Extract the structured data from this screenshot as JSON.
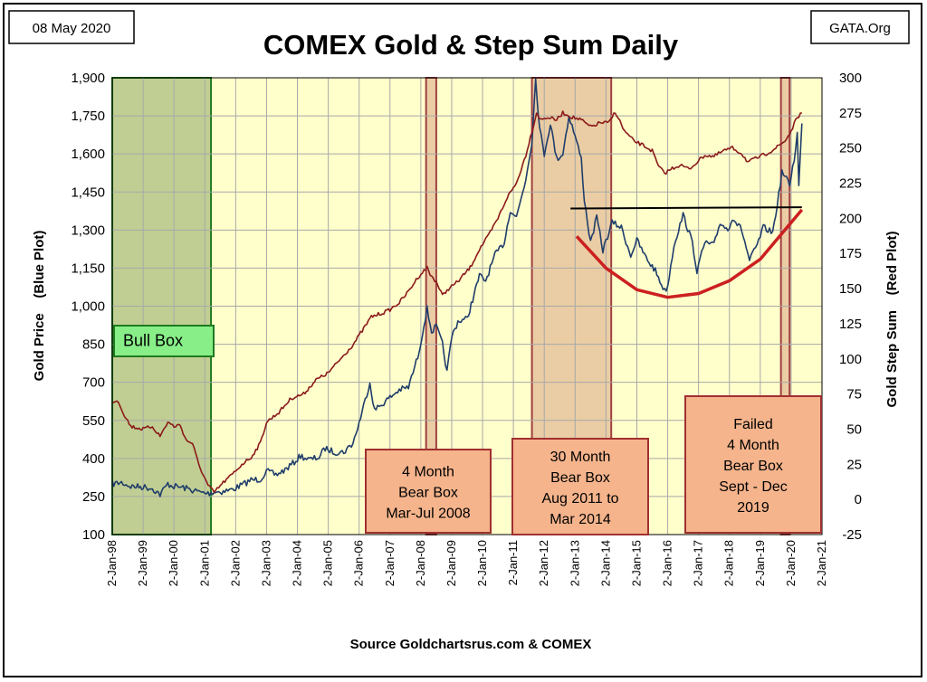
{
  "header": {
    "date_label": "08 May 2020",
    "site_label": "GATA.Org"
  },
  "chart_data": {
    "type": "line",
    "title": "COMEX Gold & Step Sum Daily",
    "source": "Source Goldchartsrus.com & COMEX",
    "left_axis": {
      "label": "Gold Price    (Blue Plot)",
      "min": 100,
      "max": 1900,
      "ticks": [
        100,
        250,
        400,
        550,
        700,
        850,
        1000,
        1150,
        1300,
        1450,
        1600,
        1750,
        1900
      ],
      "tick_labels": [
        "100",
        "250",
        "400",
        "550",
        "700",
        "850",
        "1,000",
        "1,150",
        "1,300",
        "1,450",
        "1,600",
        "1,750",
        "1,900"
      ]
    },
    "right_axis": {
      "label": "Gold Step Sum    (Red Plot)",
      "min": -25,
      "max": 300,
      "ticks": [
        -25,
        0,
        25,
        50,
        75,
        100,
        125,
        150,
        175,
        200,
        225,
        250,
        275,
        300
      ],
      "tick_labels": [
        "-25",
        "0",
        "25",
        "50",
        "75",
        "100",
        "125",
        "150",
        "175",
        "200",
        "225",
        "250",
        "275",
        "300"
      ]
    },
    "x_axis": {
      "min": 1998.0,
      "max": 2021.0,
      "ticks": [
        1998,
        1999,
        2000,
        2001,
        2002,
        2003,
        2004,
        2005,
        2006,
        2007,
        2008,
        2009,
        2010,
        2011,
        2012,
        2013,
        2014,
        2015,
        2016,
        2017,
        2018,
        2019,
        2020,
        2021
      ],
      "tick_labels": [
        "2-Jan-98",
        "2-Jan-99",
        "2-Jan-00",
        "2-Jan-01",
        "2-Jan-02",
        "2-Jan-03",
        "2-Jan-04",
        "2-Jan-05",
        "2-Jan-06",
        "2-Jan-07",
        "2-Jan-08",
        "2-Jan-09",
        "2-Jan-10",
        "2-Jan-11",
        "2-Jan-12",
        "2-Jan-13",
        "2-Jan-14",
        "2-Jan-15",
        "2-Jan-16",
        "2-Jan-17",
        "2-Jan-18",
        "2-Jan-19",
        "2-Jan-20",
        "2-Jan-21"
      ]
    },
    "grid": true,
    "series": [
      {
        "name": "Gold Price",
        "axis": "left",
        "color": "#1f3d6b",
        "points": [
          [
            1998.0,
            300
          ],
          [
            1998.3,
            305
          ],
          [
            1998.6,
            290
          ],
          [
            1999.0,
            288
          ],
          [
            1999.3,
            282
          ],
          [
            1999.55,
            258
          ],
          [
            1999.8,
            300
          ],
          [
            2000.0,
            290
          ],
          [
            2000.3,
            285
          ],
          [
            2000.6,
            275
          ],
          [
            2000.9,
            265
          ],
          [
            2001.1,
            262
          ],
          [
            2001.3,
            268
          ],
          [
            2001.6,
            270
          ],
          [
            2001.9,
            278
          ],
          [
            2002.2,
            295
          ],
          [
            2002.5,
            315
          ],
          [
            2002.8,
            318
          ],
          [
            2003.0,
            350
          ],
          [
            2003.3,
            335
          ],
          [
            2003.6,
            355
          ],
          [
            2003.9,
            385
          ],
          [
            2004.1,
            410
          ],
          [
            2004.4,
            395
          ],
          [
            2004.7,
            405
          ],
          [
            2004.9,
            440
          ],
          [
            2005.2,
            425
          ],
          [
            2005.5,
            425
          ],
          [
            2005.8,
            460
          ],
          [
            2006.0,
            540
          ],
          [
            2006.35,
            700
          ],
          [
            2006.5,
            590
          ],
          [
            2006.8,
            620
          ],
          [
            2007.0,
            640
          ],
          [
            2007.3,
            670
          ],
          [
            2007.6,
            680
          ],
          [
            2007.9,
            800
          ],
          [
            2008.0,
            860
          ],
          [
            2008.2,
            990
          ],
          [
            2008.35,
            900
          ],
          [
            2008.5,
            920
          ],
          [
            2008.7,
            850
          ],
          [
            2008.85,
            740
          ],
          [
            2009.0,
            880
          ],
          [
            2009.2,
            940
          ],
          [
            2009.5,
            950
          ],
          [
            2009.9,
            1120
          ],
          [
            2010.1,
            1100
          ],
          [
            2010.4,
            1200
          ],
          [
            2010.7,
            1250
          ],
          [
            2010.9,
            1380
          ],
          [
            2011.1,
            1350
          ],
          [
            2011.4,
            1500
          ],
          [
            2011.6,
            1650
          ],
          [
            2011.72,
            1895
          ],
          [
            2011.85,
            1700
          ],
          [
            2012.0,
            1600
          ],
          [
            2012.2,
            1720
          ],
          [
            2012.4,
            1580
          ],
          [
            2012.6,
            1600
          ],
          [
            2012.8,
            1750
          ],
          [
            2013.0,
            1670
          ],
          [
            2013.2,
            1580
          ],
          [
            2013.3,
            1420
          ],
          [
            2013.5,
            1250
          ],
          [
            2013.7,
            1350
          ],
          [
            2013.9,
            1220
          ],
          [
            2014.2,
            1330
          ],
          [
            2014.5,
            1310
          ],
          [
            2014.8,
            1200
          ],
          [
            2015.0,
            1260
          ],
          [
            2015.3,
            1190
          ],
          [
            2015.6,
            1140
          ],
          [
            2015.9,
            1060
          ],
          [
            2016.0,
            1080
          ],
          [
            2016.2,
            1240
          ],
          [
            2016.5,
            1360
          ],
          [
            2016.8,
            1250
          ],
          [
            2016.95,
            1140
          ],
          [
            2017.2,
            1250
          ],
          [
            2017.5,
            1240
          ],
          [
            2017.7,
            1330
          ],
          [
            2017.95,
            1300
          ],
          [
            2018.1,
            1350
          ],
          [
            2018.4,
            1300
          ],
          [
            2018.65,
            1180
          ],
          [
            2018.9,
            1240
          ],
          [
            2019.1,
            1310
          ],
          [
            2019.4,
            1290
          ],
          [
            2019.6,
            1440
          ],
          [
            2019.7,
            1530
          ],
          [
            2019.95,
            1480
          ],
          [
            2020.1,
            1580
          ],
          [
            2020.2,
            1680
          ],
          [
            2020.25,
            1470
          ],
          [
            2020.35,
            1720
          ]
        ]
      },
      {
        "name": "Gold Step Sum",
        "axis": "right",
        "color": "#8b1a1a",
        "points": [
          [
            1998.0,
            70
          ],
          [
            1998.2,
            70
          ],
          [
            1998.35,
            62
          ],
          [
            1998.6,
            52
          ],
          [
            1999.0,
            50
          ],
          [
            1999.3,
            52
          ],
          [
            1999.55,
            45
          ],
          [
            1999.8,
            55
          ],
          [
            2000.0,
            52
          ],
          [
            2000.2,
            53
          ],
          [
            2000.4,
            42
          ],
          [
            2000.6,
            40
          ],
          [
            2000.8,
            25
          ],
          [
            2001.1,
            10
          ],
          [
            2001.3,
            5
          ],
          [
            2001.6,
            12
          ],
          [
            2001.9,
            18
          ],
          [
            2002.2,
            25
          ],
          [
            2002.5,
            30
          ],
          [
            2002.8,
            40
          ],
          [
            2003.0,
            55
          ],
          [
            2003.4,
            62
          ],
          [
            2003.8,
            72
          ],
          [
            2004.2,
            75
          ],
          [
            2004.6,
            85
          ],
          [
            2005.0,
            90
          ],
          [
            2005.4,
            100
          ],
          [
            2005.8,
            110
          ],
          [
            2006.1,
            120
          ],
          [
            2006.4,
            130
          ],
          [
            2006.8,
            133
          ],
          [
            2007.0,
            135
          ],
          [
            2007.3,
            140
          ],
          [
            2007.6,
            148
          ],
          [
            2007.9,
            158
          ],
          [
            2008.2,
            165
          ],
          [
            2008.3,
            160
          ],
          [
            2008.5,
            155
          ],
          [
            2008.7,
            145
          ],
          [
            2008.9,
            150
          ],
          [
            2009.2,
            155
          ],
          [
            2009.6,
            165
          ],
          [
            2009.9,
            178
          ],
          [
            2010.2,
            188
          ],
          [
            2010.5,
            200
          ],
          [
            2010.8,
            215
          ],
          [
            2011.1,
            225
          ],
          [
            2011.4,
            245
          ],
          [
            2011.6,
            262
          ],
          [
            2011.75,
            275
          ],
          [
            2011.9,
            270
          ],
          [
            2012.1,
            272
          ],
          [
            2012.4,
            270
          ],
          [
            2012.6,
            275
          ],
          [
            2012.9,
            272
          ],
          [
            2013.2,
            270
          ],
          [
            2013.5,
            265
          ],
          [
            2013.8,
            268
          ],
          [
            2014.1,
            268
          ],
          [
            2014.3,
            276
          ],
          [
            2014.6,
            262
          ],
          [
            2014.9,
            255
          ],
          [
            2015.2,
            252
          ],
          [
            2015.5,
            248
          ],
          [
            2015.7,
            237
          ],
          [
            2015.9,
            232
          ],
          [
            2016.1,
            235
          ],
          [
            2016.4,
            238
          ],
          [
            2016.7,
            235
          ],
          [
            2016.95,
            240
          ],
          [
            2017.2,
            245
          ],
          [
            2017.5,
            244
          ],
          [
            2017.8,
            248
          ],
          [
            2018.1,
            250
          ],
          [
            2018.4,
            246
          ],
          [
            2018.6,
            240
          ],
          [
            2018.9,
            243
          ],
          [
            2019.2,
            246
          ],
          [
            2019.5,
            250
          ],
          [
            2019.8,
            255
          ],
          [
            2020.0,
            262
          ],
          [
            2020.2,
            272
          ],
          [
            2020.35,
            275
          ]
        ]
      },
      {
        "name": "Resistance Line",
        "axis": "left",
        "color": "#000000",
        "points": [
          [
            2012.85,
            1385
          ],
          [
            2020.35,
            1390
          ]
        ]
      },
      {
        "name": "Bowl Curve",
        "axis": "left",
        "color": "#cc2020",
        "points": [
          [
            2013.05,
            1275
          ],
          [
            2014.0,
            1150
          ],
          [
            2015.0,
            1065
          ],
          [
            2016.0,
            1035
          ],
          [
            2017.0,
            1050
          ],
          [
            2018.0,
            1100
          ],
          [
            2019.0,
            1185
          ],
          [
            2020.35,
            1380
          ]
        ]
      }
    ],
    "shaded_boxes": [
      {
        "name": "Bull Box",
        "label": "Bull Box",
        "start": 1998.0,
        "end": 2001.2,
        "fill": "#b9c98d",
        "stroke": "#1e7a1e"
      },
      {
        "name": "4 Month Bear Box",
        "start": 2008.17,
        "end": 2008.5,
        "fill": "#e8c8a0",
        "stroke": "#a04040"
      },
      {
        "name": "30 Month Bear Box",
        "start": 2011.6,
        "end": 2014.17,
        "fill": "#e8c8a0",
        "stroke": "#a04040"
      },
      {
        "name": "Failed 4 Month Bear Box",
        "start": 2019.67,
        "end": 2019.95,
        "fill": "#e8c8a0",
        "stroke": "#a04040"
      }
    ],
    "annotations": [
      {
        "name": "bull-box-label",
        "lines": [
          "Bull Box"
        ]
      },
      {
        "name": "bear-box-2008-label",
        "lines": [
          "4 Month",
          "Bear Box",
          "Mar-Jul 2008"
        ]
      },
      {
        "name": "bear-box-2011-label",
        "lines": [
          "30 Month",
          "Bear Box",
          "Aug 2011 to",
          "Mar 2014"
        ]
      },
      {
        "name": "bear-box-2019-label",
        "lines": [
          "Failed",
          "4 Month",
          "Bear Box",
          "Sept - Dec",
          "2019"
        ]
      }
    ]
  }
}
